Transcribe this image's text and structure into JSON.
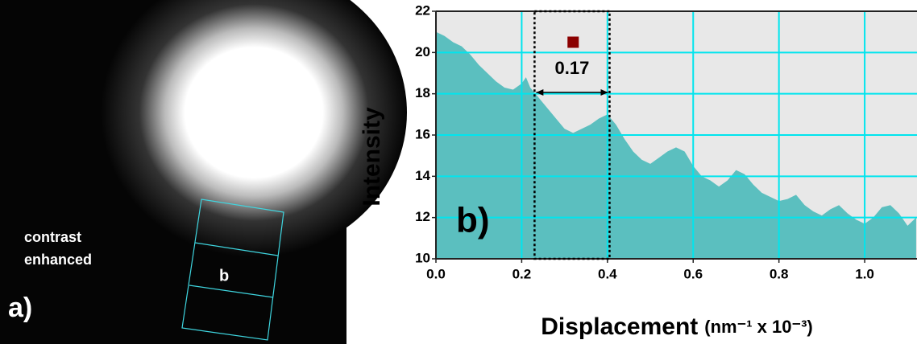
{
  "panel_a": {
    "label": "a)",
    "caption_lines": [
      "contrast",
      "enhanced"
    ],
    "box_label": "b"
  },
  "chart_data": {
    "type": "area",
    "panel_label": "b)",
    "y_label": "Intensity",
    "x_label": "Displacement",
    "x_unit": "(nm⁻¹ x 10⁻³)",
    "x": [
      0.0,
      0.02,
      0.04,
      0.06,
      0.08,
      0.1,
      0.12,
      0.14,
      0.16,
      0.18,
      0.2,
      0.21,
      0.22,
      0.24,
      0.26,
      0.28,
      0.3,
      0.32,
      0.34,
      0.36,
      0.38,
      0.4,
      0.42,
      0.44,
      0.46,
      0.48,
      0.5,
      0.52,
      0.54,
      0.56,
      0.58,
      0.6,
      0.62,
      0.64,
      0.66,
      0.68,
      0.7,
      0.72,
      0.74,
      0.76,
      0.78,
      0.8,
      0.82,
      0.84,
      0.86,
      0.88,
      0.9,
      0.92,
      0.94,
      0.96,
      0.98,
      1.0,
      1.02,
      1.04,
      1.06,
      1.08,
      1.1,
      1.12
    ],
    "series": [
      {
        "color": "#5bbfbf",
        "values": [
          21.0,
          20.8,
          20.5,
          20.3,
          19.9,
          19.4,
          19.0,
          18.6,
          18.3,
          18.2,
          18.5,
          18.8,
          18.3,
          17.8,
          17.3,
          16.8,
          16.3,
          16.1,
          16.3,
          16.5,
          16.8,
          17.0,
          16.5,
          15.8,
          15.2,
          14.8,
          14.6,
          14.9,
          15.2,
          15.4,
          15.2,
          14.5,
          14.0,
          13.8,
          13.5,
          13.8,
          14.3,
          14.1,
          13.6,
          13.2,
          13.0,
          12.8,
          12.9,
          13.1,
          12.6,
          12.3,
          12.1,
          12.4,
          12.6,
          12.2,
          11.9,
          11.7,
          12.0,
          12.5,
          12.6,
          12.2,
          11.6,
          12.0
        ]
      }
    ],
    "xlim": [
      0.0,
      1.122
    ],
    "ylim": [
      10,
      22
    ],
    "xticks": [
      {
        "value": 0.0,
        "label": "0.0"
      },
      0.2,
      0.4,
      0.6,
      0.8,
      {
        "value": 1.0,
        "label": "1.0"
      }
    ],
    "yticks": [
      10,
      12,
      14,
      16,
      18,
      20,
      22
    ],
    "grid": true,
    "grid_color": "#00e5ee",
    "background": "#e8e8e8",
    "annotation": {
      "label": "0.17",
      "x": [
        0.23,
        0.405
      ]
    },
    "marker": {
      "x": 0.32,
      "y": 20.5,
      "color": "#8b0000"
    }
  }
}
